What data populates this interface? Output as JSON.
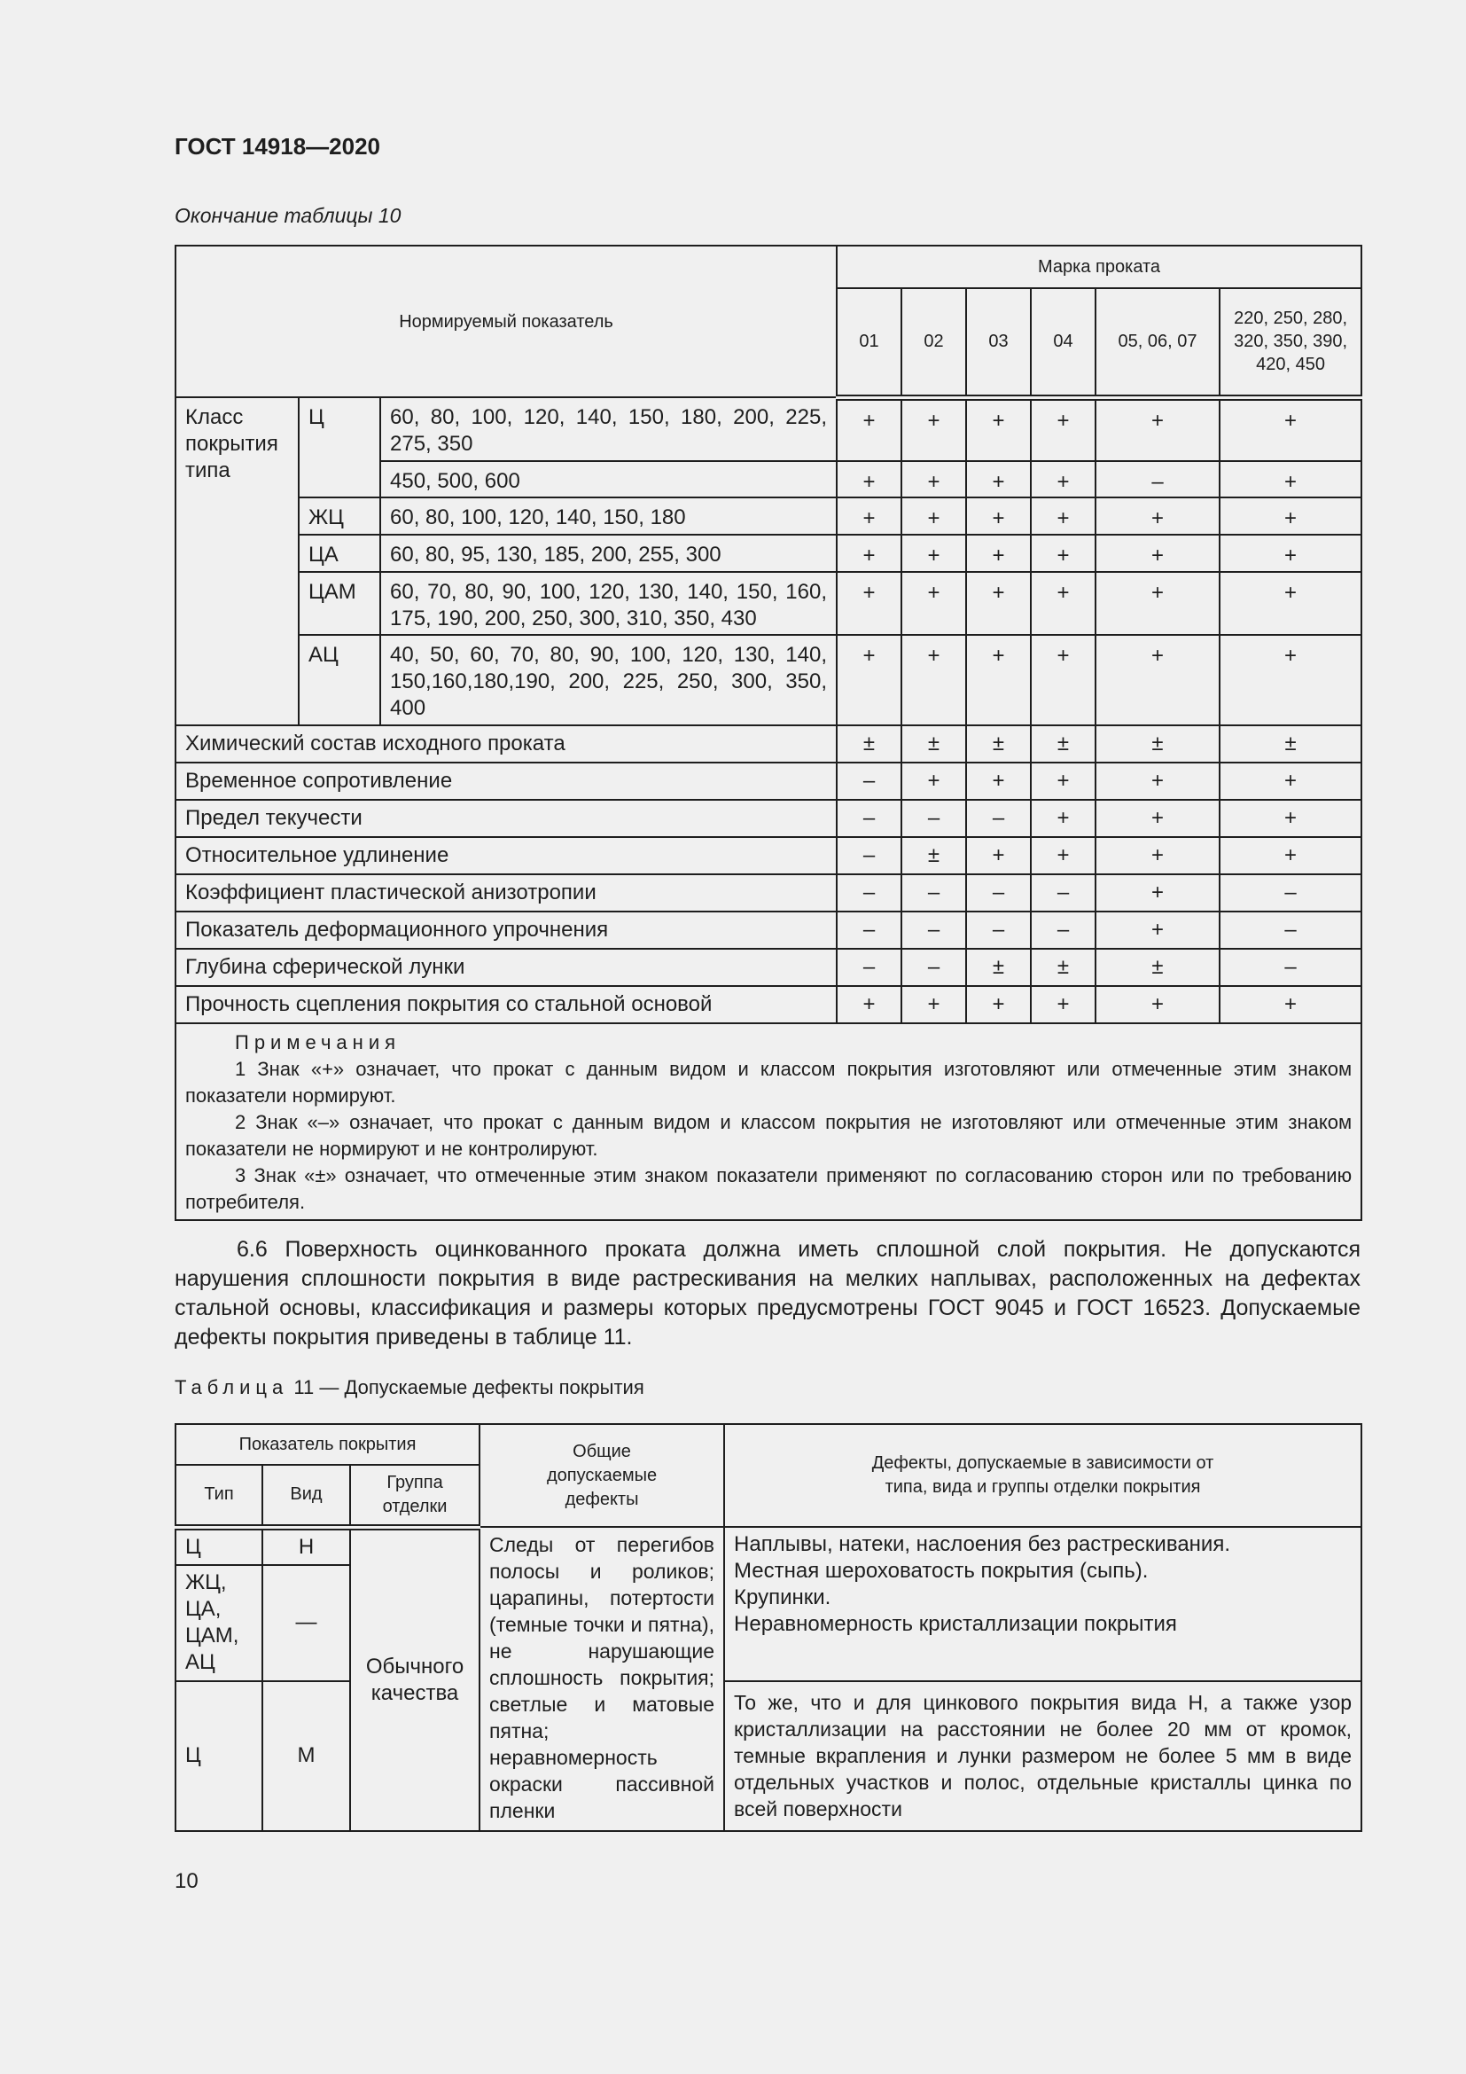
{
  "header": {
    "title": "ГОСТ 14918—2020",
    "continuation": "Окончание таблицы 10"
  },
  "table10": {
    "header_indicator": "Нормируемый показатель",
    "header_grade": "Марка проката",
    "grades": [
      "01",
      "02",
      "03",
      "04",
      "05, 06, 07",
      "220, 250, 280, 320, 350, 390, 420, 450"
    ],
    "coverage_label": "Класс покрытия типа",
    "coverage_rows": [
      {
        "type": "Ц",
        "classes": "60, 80, 100, 120, 140, 150, 180, 200, 225, 275, 350",
        "values": [
          "+",
          "+",
          "+",
          "+",
          "+",
          "+"
        ]
      },
      {
        "type": "",
        "classes": "450, 500, 600",
        "values": [
          "+",
          "+",
          "+",
          "+",
          "–",
          "+"
        ]
      },
      {
        "type": "ЖЦ",
        "classes": "60, 80, 100, 120, 140, 150, 180",
        "values": [
          "+",
          "+",
          "+",
          "+",
          "+",
          "+"
        ]
      },
      {
        "type": "ЦА",
        "classes": "60, 80, 95, 130, 185, 200, 255, 300",
        "values": [
          "+",
          "+",
          "+",
          "+",
          "+",
          "+"
        ]
      },
      {
        "type": "ЦАМ",
        "classes": "60, 70, 80, 90, 100, 120, 130, 140, 150, 160, 175, 190, 200, 250, 300, 310, 350, 430",
        "values": [
          "+",
          "+",
          "+",
          "+",
          "+",
          "+"
        ]
      },
      {
        "type": "АЦ",
        "classes": "40, 50, 60, 70, 80, 90, 100, 120, 130, 140, 150,160,180,190, 200, 225, 250, 300, 350, 400",
        "values": [
          "+",
          "+",
          "+",
          "+",
          "+",
          "+"
        ]
      }
    ],
    "property_rows": [
      {
        "label": "Химический состав исходного проката",
        "values": [
          "±",
          "±",
          "±",
          "±",
          "±",
          "±"
        ]
      },
      {
        "label": "Временное сопротивление",
        "values": [
          "–",
          "+",
          "+",
          "+",
          "+",
          "+"
        ]
      },
      {
        "label": "Предел текучести",
        "values": [
          "–",
          "–",
          "–",
          "+",
          "+",
          "+"
        ]
      },
      {
        "label": "Относительное удлинение",
        "values": [
          "–",
          "±",
          "+",
          "+",
          "+",
          "+"
        ]
      },
      {
        "label": "Коэффициент пластической анизотропии",
        "values": [
          "–",
          "–",
          "–",
          "–",
          "+",
          "–"
        ]
      },
      {
        "label": "Показатель деформационного упрочнения",
        "values": [
          "–",
          "–",
          "–",
          "–",
          "+",
          "–"
        ]
      },
      {
        "label": "Глубина сферической лунки",
        "values": [
          "–",
          "–",
          "±",
          "±",
          "±",
          "–"
        ]
      },
      {
        "label": "Прочность сцепления покрытия со стальной основой",
        "values": [
          "+",
          "+",
          "+",
          "+",
          "+",
          "+"
        ]
      }
    ],
    "notes_title": "Примечания",
    "notes": [
      "1 Знак «+» означает, что прокат с данным видом и классом покрытия изготовляют или отмеченные этим знаком показатели нормируют.",
      "2 Знак «–» означает, что прокат с данным видом и классом покрытия не изготовляют или отмеченные этим знаком показатели не нормируют и не контролируют.",
      "3 Знак «±» означает, что отмеченные этим знаком показатели применяют по согласованию сторон или по требованию потребителя."
    ]
  },
  "paragraph_6_6": "6.6 Поверхность оцинкованного проката должна иметь сплошной слой покрытия. Не допускаются нарушения сплошности покрытия в виде растрескивания на мелких наплывах, расположенных на дефектах стальной основы, классификация и размеры которых предусмотрены ГОСТ 9045 и ГОСТ 16523. Допускаемые дефекты покрытия приведены в таблице 11.",
  "table11": {
    "caption_prefix": "Таблица",
    "caption": " 11 — Допускаемые дефекты покрытия",
    "h_indicator": "Показатель покрытия",
    "h_type": "Тип",
    "h_kind": "Вид",
    "h_group": "Группа отделки",
    "h_general": "Общие допускаемые дефекты",
    "h_defects": "Дефекты, допускаемые в зависимости от типа, вида и группы отделки покрытия",
    "r1_type": "Ц",
    "r1_kind": "Н",
    "r2_type": "ЖЦ, ЦА, ЦАМ, АЦ",
    "r2_kind": "—",
    "r3_type": "Ц",
    "r3_kind": "М",
    "group": "Обычного качества",
    "general": "Следы от перегибов полосы и роликов; царапины, потертости (темные точки и пятна), не нарушающие сплошность покрытия; светлые и матовые пятна; неравномерность окраски пассивной пленки",
    "defects_a": [
      "Наплывы, натеки, наслоения без растрескивания.",
      "Местная шероховатость покрытия (сыпь).",
      "Крупинки.",
      "Неравномерность кристаллизации покрытия"
    ],
    "defects_b": "То же, что и для цинкового покрытия вида Н, а также узор кристаллизации на расстоянии не более 20 мм от кромок, темные вкрапления и лунки размером не более 5 мм в виде отдельных участков и полос, отдельные кристаллы цинка по всей поверхности"
  },
  "page_number": "10"
}
